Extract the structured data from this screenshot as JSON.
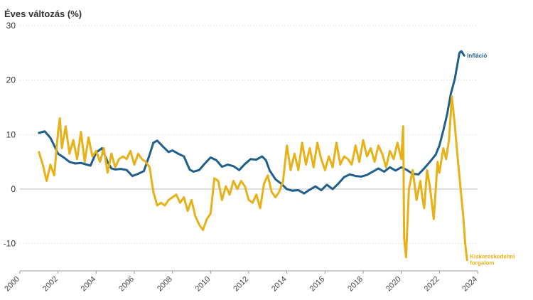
{
  "chart_data": {
    "type": "line",
    "title": "Éves változás (%)",
    "xlabel": "",
    "ylabel": "",
    "xlim": [
      2000,
      2024
    ],
    "ylim": [
      -15,
      30
    ],
    "yticks": [
      30,
      20,
      10,
      0,
      -10
    ],
    "ytick_labels": [
      "30",
      "20",
      "10",
      "0",
      "-10"
    ],
    "xticks": [
      2000,
      2002,
      2004,
      2006,
      2008,
      2010,
      2012,
      2014,
      2016,
      2018,
      2020,
      2022,
      2024
    ],
    "xtick_labels": [
      "2000",
      "2002",
      "2004",
      "2006",
      "2008",
      "2010",
      "2012",
      "2014",
      "2016",
      "2018",
      "2020",
      "2022",
      "2024"
    ],
    "grid": true,
    "series": [
      {
        "name": "Infláció",
        "color": "#1f5f8b",
        "label_lines": [
          "Infláció"
        ],
        "x": [
          2001.0,
          2001.3,
          2001.6,
          2001.8,
          2002.0,
          2002.3,
          2002.6,
          2002.9,
          2003.2,
          2003.5,
          2003.7,
          2004.0,
          2004.3,
          2004.6,
          2004.8,
          2005.0,
          2005.3,
          2005.6,
          2005.9,
          2006.2,
          2006.5,
          2006.8,
          2007.0,
          2007.2,
          2007.5,
          2007.8,
          2008.0,
          2008.3,
          2008.6,
          2008.9,
          2009.1,
          2009.4,
          2009.7,
          2010.0,
          2010.3,
          2010.6,
          2010.9,
          2011.2,
          2011.5,
          2011.8,
          2012.1,
          2012.4,
          2012.7,
          2012.9,
          2013.1,
          2013.4,
          2013.7,
          2014.0,
          2014.3,
          2014.6,
          2014.9,
          2015.2,
          2015.5,
          2015.8,
          2016.1,
          2016.4,
          2016.7,
          2017.0,
          2017.3,
          2017.6,
          2017.9,
          2018.2,
          2018.5,
          2018.8,
          2019.1,
          2019.4,
          2019.7,
          2020.0,
          2020.3,
          2020.6,
          2020.9,
          2021.2,
          2021.5,
          2021.8,
          2022.0,
          2022.2,
          2022.4,
          2022.6,
          2022.8,
          2022.95,
          2023.05,
          2023.15,
          2023.3
        ],
        "values": [
          10.3,
          10.6,
          9.4,
          8.0,
          6.5,
          5.8,
          5.0,
          4.7,
          4.8,
          4.5,
          4.3,
          6.7,
          7.5,
          5.0,
          3.8,
          3.6,
          3.7,
          3.5,
          2.4,
          2.8,
          3.3,
          6.3,
          8.5,
          8.9,
          7.8,
          6.8,
          7.1,
          6.5,
          6.0,
          3.6,
          3.2,
          3.5,
          4.7,
          5.8,
          5.3,
          4.1,
          4.5,
          4.2,
          3.5,
          4.6,
          5.5,
          5.4,
          6.0,
          5.3,
          3.4,
          1.8,
          1.0,
          0.0,
          -0.3,
          -0.2,
          -0.8,
          -0.1,
          0.5,
          -0.2,
          0.8,
          0.0,
          1.0,
          2.2,
          2.7,
          2.4,
          2.3,
          2.6,
          3.2,
          3.8,
          3.2,
          4.0,
          3.4,
          4.0,
          3.5,
          2.8,
          2.7,
          3.8,
          5.0,
          6.3,
          8.0,
          10.7,
          13.7,
          17.5,
          20.1,
          23.0,
          25.0,
          25.3,
          24.5
        ]
      },
      {
        "name": "Kiskereskedelmi forgalom",
        "color": "#e8b117",
        "label_lines": [
          "Kiskereskedelmi",
          "forgalom"
        ],
        "x": [
          2001.0,
          2001.2,
          2001.4,
          2001.6,
          2001.8,
          2002.0,
          2002.1,
          2002.2,
          2002.4,
          2002.6,
          2002.8,
          2003.0,
          2003.2,
          2003.4,
          2003.6,
          2003.8,
          2004.0,
          2004.2,
          2004.4,
          2004.6,
          2004.8,
          2005.0,
          2005.2,
          2005.4,
          2005.6,
          2005.8,
          2006.0,
          2006.2,
          2006.4,
          2006.6,
          2006.8,
          2007.0,
          2007.2,
          2007.4,
          2007.6,
          2007.8,
          2008.0,
          2008.2,
          2008.4,
          2008.6,
          2008.8,
          2009.0,
          2009.2,
          2009.4,
          2009.6,
          2009.8,
          2010.0,
          2010.2,
          2010.4,
          2010.6,
          2010.8,
          2011.0,
          2011.2,
          2011.4,
          2011.6,
          2011.8,
          2012.0,
          2012.2,
          2012.4,
          2012.6,
          2012.8,
          2013.0,
          2013.2,
          2013.4,
          2013.6,
          2013.8,
          2014.0,
          2014.2,
          2014.4,
          2014.6,
          2014.8,
          2015.0,
          2015.2,
          2015.4,
          2015.6,
          2015.8,
          2016.0,
          2016.2,
          2016.4,
          2016.6,
          2016.8,
          2017.0,
          2017.2,
          2017.4,
          2017.6,
          2017.8,
          2018.0,
          2018.2,
          2018.4,
          2018.6,
          2018.8,
          2019.0,
          2019.2,
          2019.4,
          2019.6,
          2019.8,
          2020.0,
          2020.1,
          2020.15,
          2020.25,
          2020.4,
          2020.6,
          2020.8,
          2021.0,
          2021.1,
          2021.2,
          2021.35,
          2021.5,
          2021.7,
          2021.9,
          2022.0,
          2022.2,
          2022.35,
          2022.5,
          2022.65,
          2022.8,
          2022.95,
          2023.1,
          2023.25,
          2023.35,
          2023.45
        ],
        "values": [
          6.8,
          4.5,
          1.5,
          4.5,
          2.5,
          10.5,
          13.0,
          7.5,
          11.5,
          6.5,
          9.0,
          5.5,
          10.5,
          5.0,
          9.5,
          6.0,
          7.0,
          5.0,
          7.5,
          3.0,
          6.5,
          4.0,
          5.5,
          6.0,
          5.5,
          7.0,
          4.5,
          6.5,
          5.5,
          5.0,
          4.0,
          -0.5,
          -3.0,
          -2.5,
          -3.0,
          -2.0,
          -1.5,
          -1.0,
          -2.5,
          -1.5,
          -4.0,
          -2.0,
          -5.0,
          -6.5,
          -7.5,
          -5.5,
          -4.5,
          2.0,
          1.5,
          -2.0,
          0.5,
          -1.0,
          1.5,
          0.0,
          1.5,
          0.5,
          -2.0,
          -2.5,
          -1.0,
          -3.5,
          1.0,
          2.5,
          -0.5,
          -1.5,
          -0.5,
          1.5,
          8.0,
          3.5,
          6.5,
          3.5,
          8.5,
          4.5,
          7.5,
          4.0,
          8.5,
          5.5,
          3.5,
          6.0,
          4.0,
          8.5,
          4.5,
          6.0,
          5.5,
          4.5,
          8.0,
          5.0,
          9.0,
          6.0,
          7.5,
          5.0,
          8.0,
          6.5,
          4.0,
          7.0,
          5.5,
          8.5,
          5.5,
          11.5,
          -9.0,
          -12.5,
          0.0,
          3.5,
          -2.0,
          1.5,
          -1.5,
          -3.5,
          3.5,
          0.5,
          -5.5,
          5.0,
          3.0,
          7.5,
          5.5,
          9.0,
          17.0,
          12.0,
          6.0,
          0.5,
          -5.0,
          -10.0,
          -13.0
        ]
      }
    ]
  }
}
